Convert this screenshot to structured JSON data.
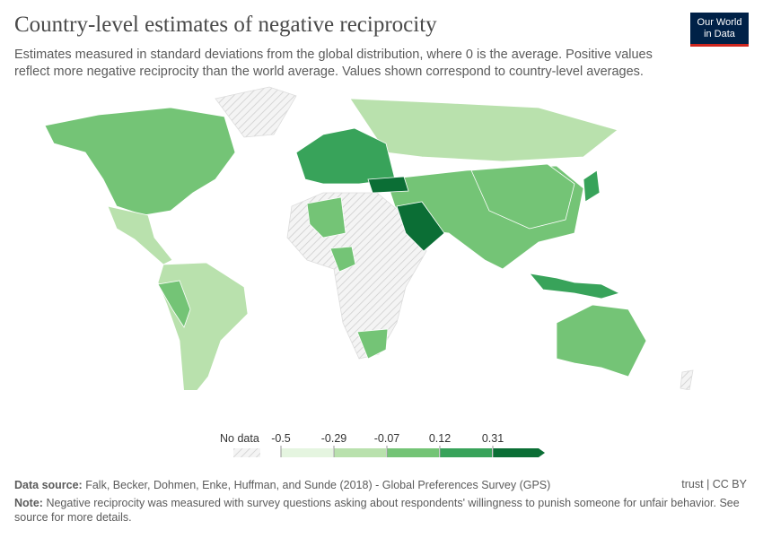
{
  "header": {
    "title": "Country-level estimates of negative reciprocity",
    "subtitle": "Estimates measured in standard deviations from the global distribution, where 0 is the average. Positive values reflect more negative reciprocity than the world average. Values shown correspond to country-level averages.",
    "logo": [
      "Our World",
      "in Data"
    ]
  },
  "legend": {
    "no_data": "No data",
    "ticks": [
      -0.5,
      -0.29,
      -0.07,
      0.12,
      0.31
    ],
    "colors": [
      "#e5f5e0",
      "#b9e1ad",
      "#74c476",
      "#38a35a",
      "#0b6e35"
    ]
  },
  "footer": {
    "source_label": "Data source:",
    "source": "Falk, Becker, Dohmen, Enke, Huffman, and Sunde (2018) - Global Preferences Survey (GPS)",
    "license": "trust | CC BY",
    "note_label": "Note:",
    "note": "Negative reciprocity was measured with survey questions asking about respondents' willingness to punish someone for unfair behavior. See source for more details."
  }
}
